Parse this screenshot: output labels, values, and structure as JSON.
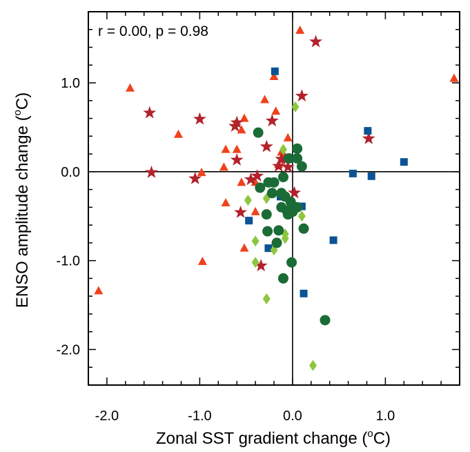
{
  "chart_data": {
    "type": "scatter",
    "title": "",
    "xlabel": "Zonal SST gradient change (",
    "ylabel": "ENSO amplitude change (",
    "unit_sup": "o",
    "unit_tail": "C)",
    "annotation": "r = 0.00, p = 0.98",
    "xlim": [
      -2.2,
      1.8
    ],
    "ylim": [
      -2.4,
      1.8
    ],
    "x_ticks": [
      -2.0,
      -1.0,
      0.0,
      1.0
    ],
    "x_tick_labels": [
      "-2.0",
      "-1.0",
      "0.0",
      "1.0"
    ],
    "y_ticks": [
      -2.0,
      -1.0,
      0.0,
      1.0
    ],
    "y_tick_labels": [
      "-2.0",
      "-1.0",
      "0.0",
      "1.0"
    ],
    "x_minor_step": 0.2,
    "y_minor_step": 0.2,
    "zero_lines": true,
    "grid": false,
    "series": [
      {
        "marker": "triangle",
        "color": "#f0421c",
        "points": [
          [
            0.08,
            1.59
          ],
          [
            1.74,
            1.05
          ],
          [
            -0.2,
            1.07
          ],
          [
            -1.75,
            0.94
          ],
          [
            -0.3,
            0.81
          ],
          [
            -0.18,
            0.68
          ],
          [
            -1.23,
            0.42
          ],
          [
            -0.52,
            0.6
          ],
          [
            -0.55,
            0.47
          ],
          [
            -0.72,
            0.25
          ],
          [
            -0.6,
            0.25
          ],
          [
            -0.12,
            0.22
          ],
          [
            -0.05,
            0.38
          ],
          [
            -0.74,
            0.05
          ],
          [
            -0.98,
            -0.01
          ],
          [
            -0.1,
            0.14
          ],
          [
            -0.15,
            0.08
          ],
          [
            -0.55,
            -0.12
          ],
          [
            -0.4,
            -0.12
          ],
          [
            -0.72,
            -0.35
          ],
          [
            -0.4,
            -0.45
          ],
          [
            -0.52,
            -0.86
          ],
          [
            -0.97,
            -1.01
          ],
          [
            -2.09,
            -1.34
          ]
        ]
      },
      {
        "marker": "star",
        "color": "#b2222b",
        "points": [
          [
            0.25,
            1.47
          ],
          [
            0.1,
            0.86
          ],
          [
            -1.54,
            0.67
          ],
          [
            -1.0,
            0.6
          ],
          [
            -0.6,
            0.56
          ],
          [
            -0.62,
            0.52
          ],
          [
            -0.22,
            0.58
          ],
          [
            0.82,
            0.38
          ],
          [
            -0.28,
            0.29
          ],
          [
            -0.6,
            0.14
          ],
          [
            -0.12,
            0.15
          ],
          [
            -0.08,
            0.15
          ],
          [
            -0.15,
            0.07
          ],
          [
            -0.05,
            0.06
          ],
          [
            -1.52,
            0.0
          ],
          [
            -0.38,
            -0.04
          ],
          [
            -1.05,
            -0.07
          ],
          [
            -0.45,
            -0.08
          ],
          [
            0.02,
            -0.23
          ],
          [
            -0.56,
            -0.45
          ],
          [
            -0.34,
            -1.05
          ]
        ]
      },
      {
        "marker": "square",
        "color": "#0b5394",
        "points": [
          [
            -0.19,
            1.13
          ],
          [
            0.81,
            0.46
          ],
          [
            1.2,
            0.11
          ],
          [
            0.65,
            -0.02
          ],
          [
            0.85,
            -0.05
          ],
          [
            -0.13,
            -0.28
          ],
          [
            0.1,
            -0.39
          ],
          [
            -0.47,
            -0.55
          ],
          [
            0.44,
            -0.77
          ],
          [
            -0.26,
            -0.86
          ],
          [
            0.12,
            -1.37
          ]
        ]
      },
      {
        "marker": "diamond",
        "color": "#8dc63f",
        "points": [
          [
            0.03,
            0.73
          ],
          [
            -0.1,
            0.25
          ],
          [
            -0.48,
            -0.32
          ],
          [
            -0.28,
            -0.3
          ],
          [
            0.1,
            -0.5
          ],
          [
            -0.4,
            -0.78
          ],
          [
            -0.08,
            -0.7
          ],
          [
            -0.08,
            -0.75
          ],
          [
            -0.2,
            -0.88
          ],
          [
            -0.4,
            -1.02
          ],
          [
            -0.28,
            -1.43
          ],
          [
            0.22,
            -2.18
          ]
        ]
      },
      {
        "marker": "circle",
        "color": "#1b6b36",
        "points": [
          [
            -0.37,
            0.44
          ],
          [
            0.05,
            0.26
          ],
          [
            0.05,
            0.15
          ],
          [
            -0.04,
            0.15
          ],
          [
            0.1,
            0.06
          ],
          [
            -0.2,
            -0.12
          ],
          [
            -0.26,
            -0.12
          ],
          [
            -0.1,
            -0.06
          ],
          [
            -0.35,
            -0.18
          ],
          [
            -0.22,
            -0.24
          ],
          [
            -0.12,
            -0.24
          ],
          [
            -0.08,
            -0.28
          ],
          [
            -0.02,
            -0.34
          ],
          [
            -0.12,
            -0.4
          ],
          [
            -0.06,
            -0.44
          ],
          [
            0.05,
            -0.4
          ],
          [
            0.0,
            -0.45
          ],
          [
            -0.28,
            -0.48
          ],
          [
            -0.05,
            -0.48
          ],
          [
            0.12,
            -0.64
          ],
          [
            -0.15,
            -0.66
          ],
          [
            -0.27,
            -0.67
          ],
          [
            -0.17,
            -0.8
          ],
          [
            -0.01,
            -1.02
          ],
          [
            -0.1,
            -1.2
          ],
          [
            0.35,
            -1.67
          ]
        ]
      }
    ]
  }
}
